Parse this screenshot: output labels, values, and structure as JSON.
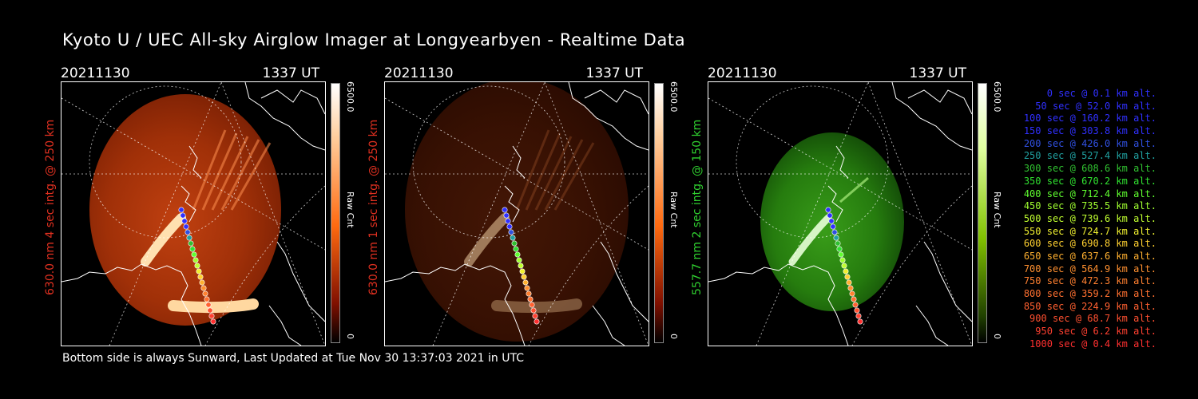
{
  "title": "Kyoto U / UEC All-sky Airglow Imager at Longyearbyen - Realtime Data",
  "footer": "Bottom side is always Sunward, Last Updated at Tue Nov 30 13:37:03 2021 in UTC",
  "panels": [
    {
      "date": "20211130",
      "time": "1337 UT",
      "label": "630.0 nm 4 sec intg. @ 250 km",
      "label_color": "#e03020",
      "cbar_max": "6500.0",
      "cbar_min": "0",
      "cbar_unit": "Raw Cnt",
      "scheme": "red",
      "brightness": 1.0
    },
    {
      "date": "20211130",
      "time": "1337 UT",
      "label": "630.0 nm 1 sec intg. @ 250 km",
      "label_color": "#e03020",
      "cbar_max": "6500.0",
      "cbar_min": "0",
      "cbar_unit": "Raw Cnt",
      "scheme": "red",
      "brightness": 0.35
    },
    {
      "date": "20211130",
      "time": "1337 UT",
      "label": "557.7 nm 2 sec intg. @ 150 km",
      "label_color": "#30d030",
      "cbar_max": "6500.0",
      "cbar_min": "0",
      "cbar_unit": "Raw Cnt",
      "scheme": "green",
      "brightness": 1.0
    }
  ],
  "legend": [
    {
      "text": "0 sec @   0.1 km alt.",
      "color": "#3030ff"
    },
    {
      "text": "50 sec @  52.0 km alt.",
      "color": "#3030ff"
    },
    {
      "text": "100 sec @ 160.2 km alt.",
      "color": "#3030ff"
    },
    {
      "text": "150 sec @ 303.8 km alt.",
      "color": "#3030ff"
    },
    {
      "text": "200 sec @ 426.0 km alt.",
      "color": "#3050e0"
    },
    {
      "text": "250 sec @ 527.4 km alt.",
      "color": "#20a0a0"
    },
    {
      "text": "300 sec @ 608.6 km alt.",
      "color": "#30c030"
    },
    {
      "text": "350 sec @ 670.2 km alt.",
      "color": "#30e030"
    },
    {
      "text": "400 sec @ 712.4 km alt.",
      "color": "#60ff30"
    },
    {
      "text": "450 sec @ 735.5 km alt.",
      "color": "#a0ff30"
    },
    {
      "text": "500 sec @ 739.6 km alt.",
      "color": "#c0ff30"
    },
    {
      "text": "550 sec @ 724.7 km alt.",
      "color": "#f0f030"
    },
    {
      "text": "600 sec @ 690.8 km alt.",
      "color": "#ffd030"
    },
    {
      "text": "650 sec @ 637.6 km alt.",
      "color": "#ffb030"
    },
    {
      "text": "700 sec @ 564.9 km alt.",
      "color": "#ff9030"
    },
    {
      "text": "750 sec @ 472.3 km alt.",
      "color": "#ff8030"
    },
    {
      "text": "800 sec @ 359.2 km alt.",
      "color": "#ff7030"
    },
    {
      "text": "850 sec @ 224.9 km alt.",
      "color": "#ff6030"
    },
    {
      "text": "900 sec @  68.7 km alt.",
      "color": "#ff5030"
    },
    {
      "text": "950 sec @   6.2 km alt.",
      "color": "#ff4030"
    },
    {
      "text": "1000 sec @   0.4 km alt.",
      "color": "#ff3030"
    }
  ]
}
